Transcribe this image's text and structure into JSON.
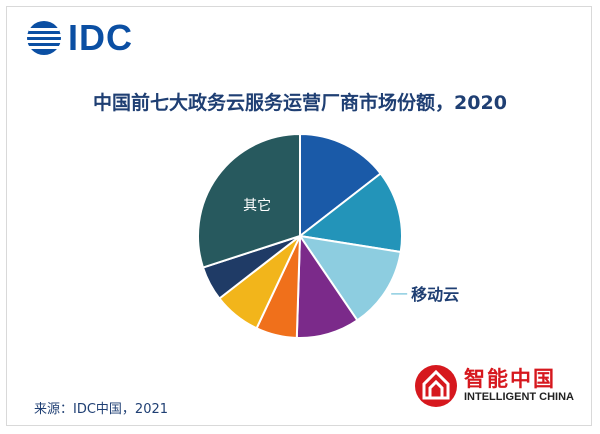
{
  "logo": {
    "text": "IDC",
    "color": "#0b4fa3"
  },
  "title": "中国前七大政务云服务运营厂商市场份额，2020",
  "source": "来源：IDC中国，2021",
  "brand": {
    "cn": "智能中国",
    "en": "INTELLIGENT CHINA",
    "color": "#d6181e"
  },
  "chart_data": {
    "type": "pie",
    "title": "中国前七大政务云服务运营厂商市场份额，2020",
    "start_angle_deg": 0,
    "direction": "clockwise",
    "slices": [
      {
        "label": "",
        "value": 14.5,
        "color": "#1a5aa8"
      },
      {
        "label": "",
        "value": 13.0,
        "color": "#2394b9"
      },
      {
        "label": "移动云",
        "value": 13.0,
        "color": "#8dcde0",
        "callout": true
      },
      {
        "label": "",
        "value": 10.0,
        "color": "#7b2a8a"
      },
      {
        "label": "",
        "value": 6.5,
        "color": "#f0701b"
      },
      {
        "label": "",
        "value": 7.5,
        "color": "#f2b51b"
      },
      {
        "label": "",
        "value": 5.5,
        "color": "#1f3b66"
      },
      {
        "label": "其它",
        "value": 30.0,
        "color": "#27595e",
        "inside_label": true
      }
    ]
  }
}
